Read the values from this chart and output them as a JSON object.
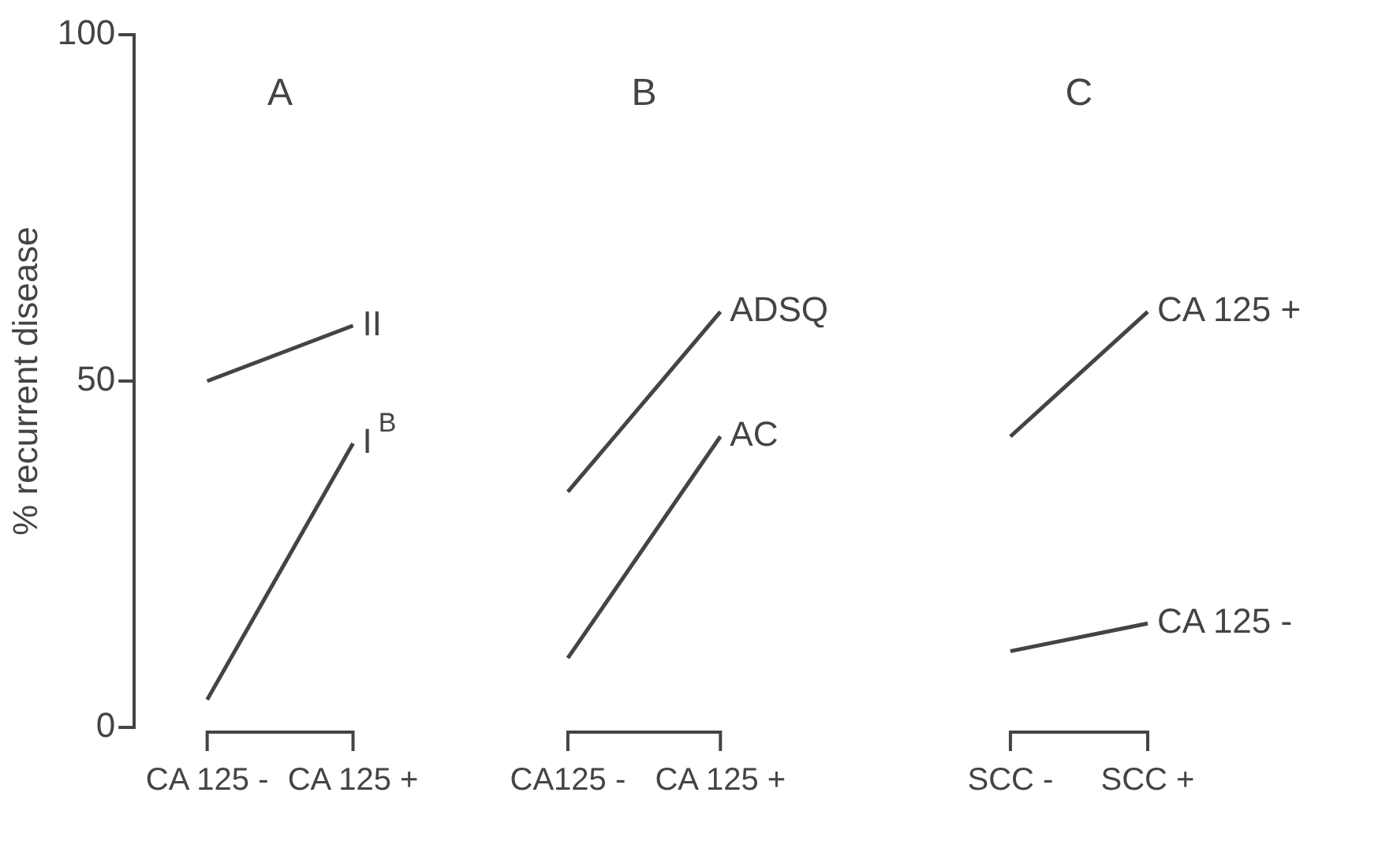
{
  "chart_data": [
    {
      "type": "line",
      "title": "A",
      "ylabel": "% recurrent disease",
      "categories": [
        "CA 125 -",
        "CA 125 +"
      ],
      "ylim": [
        0,
        100
      ],
      "yticks": [
        0,
        50,
        100
      ],
      "grid": false,
      "marker": "none",
      "series": [
        {
          "name": "II",
          "color": "#444444",
          "values": [
            50,
            58
          ]
        },
        {
          "name": "I$^{B}$",
          "color": "#444444",
          "values": [
            4,
            41
          ]
        }
      ]
    },
    {
      "type": "line",
      "title": "B",
      "categories": [
        "CA125 -",
        "CA 125 +"
      ],
      "ylim": [
        0,
        100
      ],
      "tick_labels": "x",
      "grid": false,
      "marker": "none",
      "series": [
        {
          "name": "ADSQ",
          "color": "#444444",
          "values": [
            34,
            60
          ]
        },
        {
          "name": "AC",
          "color": "#444444",
          "values": [
            10,
            42
          ]
        }
      ]
    },
    {
      "type": "line",
      "title": "C",
      "categories": [
        "SCC -",
        "SCC +"
      ],
      "ylim": [
        0,
        100
      ],
      "tick_labels": "x",
      "grid": false,
      "marker": "none",
      "series": [
        {
          "name": "CA 125 +",
          "color": "#444444",
          "values": [
            42,
            60
          ]
        },
        {
          "name": "CA 125 -",
          "color": "#444444",
          "values": [
            11,
            15
          ]
        }
      ]
    }
  ]
}
